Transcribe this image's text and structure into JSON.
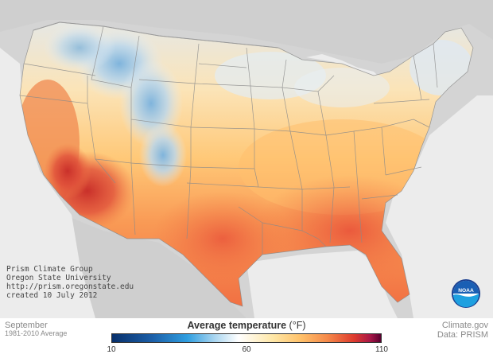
{
  "credit": {
    "line1": "Prism Climate Group",
    "line2": "Oregon State University",
    "line3": "http://prism.oregonstate.edu",
    "line4": "created 10 July 2012"
  },
  "period": {
    "month": "September",
    "range": "1981-2010 Average"
  },
  "legend": {
    "title": "Average temperature",
    "unit": "(°F)",
    "min_label": "10",
    "mid_label": "60",
    "max_label": "110",
    "colors": [
      "#08306b",
      "#2f9ee0",
      "#ffffff",
      "#ffc26b",
      "#de3b2e",
      "#5a0030"
    ]
  },
  "source": {
    "site": "Climate.gov",
    "data": "Data: PRISM"
  },
  "logo": {
    "text": "NOAA"
  },
  "map": {
    "land_color": "#cfcfcf",
    "water_color": "#eeeeee",
    "region": "Contiguous United States"
  }
}
